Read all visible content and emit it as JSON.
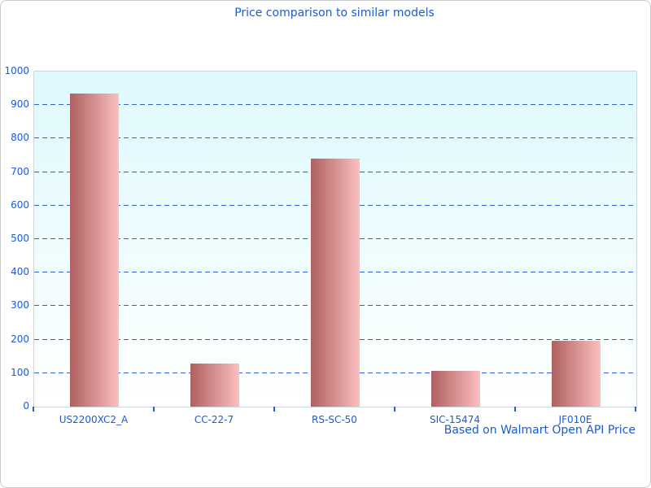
{
  "chart_data": {
    "type": "bar",
    "title": "Price comparison to similar models",
    "categories": [
      "US2200XC2_A",
      "CC-22-7",
      "RS-SC-50",
      "SIC-15474",
      "JF010E"
    ],
    "values": [
      935,
      128,
      740,
      106,
      196
    ],
    "xlabel": "",
    "ylabel": "",
    "ylim": [
      0,
      1000
    ],
    "ytick_interval": 100,
    "yticks": [
      0,
      100,
      200,
      300,
      400,
      500,
      600,
      700,
      800,
      900,
      1000
    ],
    "grid": "horizontal-dashed",
    "legend": "none",
    "annotation": "Based on Walmart Open API Price"
  },
  "colors": {
    "text_blue": "#1c5bd2",
    "gridline_blue": "#3161c9",
    "tick_blue": "#2b5cc9",
    "bar_gradient_left": "#b06060",
    "bar_gradient_right": "#fbc0c0",
    "plot_bg_top": "#def9fd",
    "plot_bg_bottom": "#ffffff",
    "plot_border": "#c9d6da",
    "page_border": "#cccccc"
  }
}
